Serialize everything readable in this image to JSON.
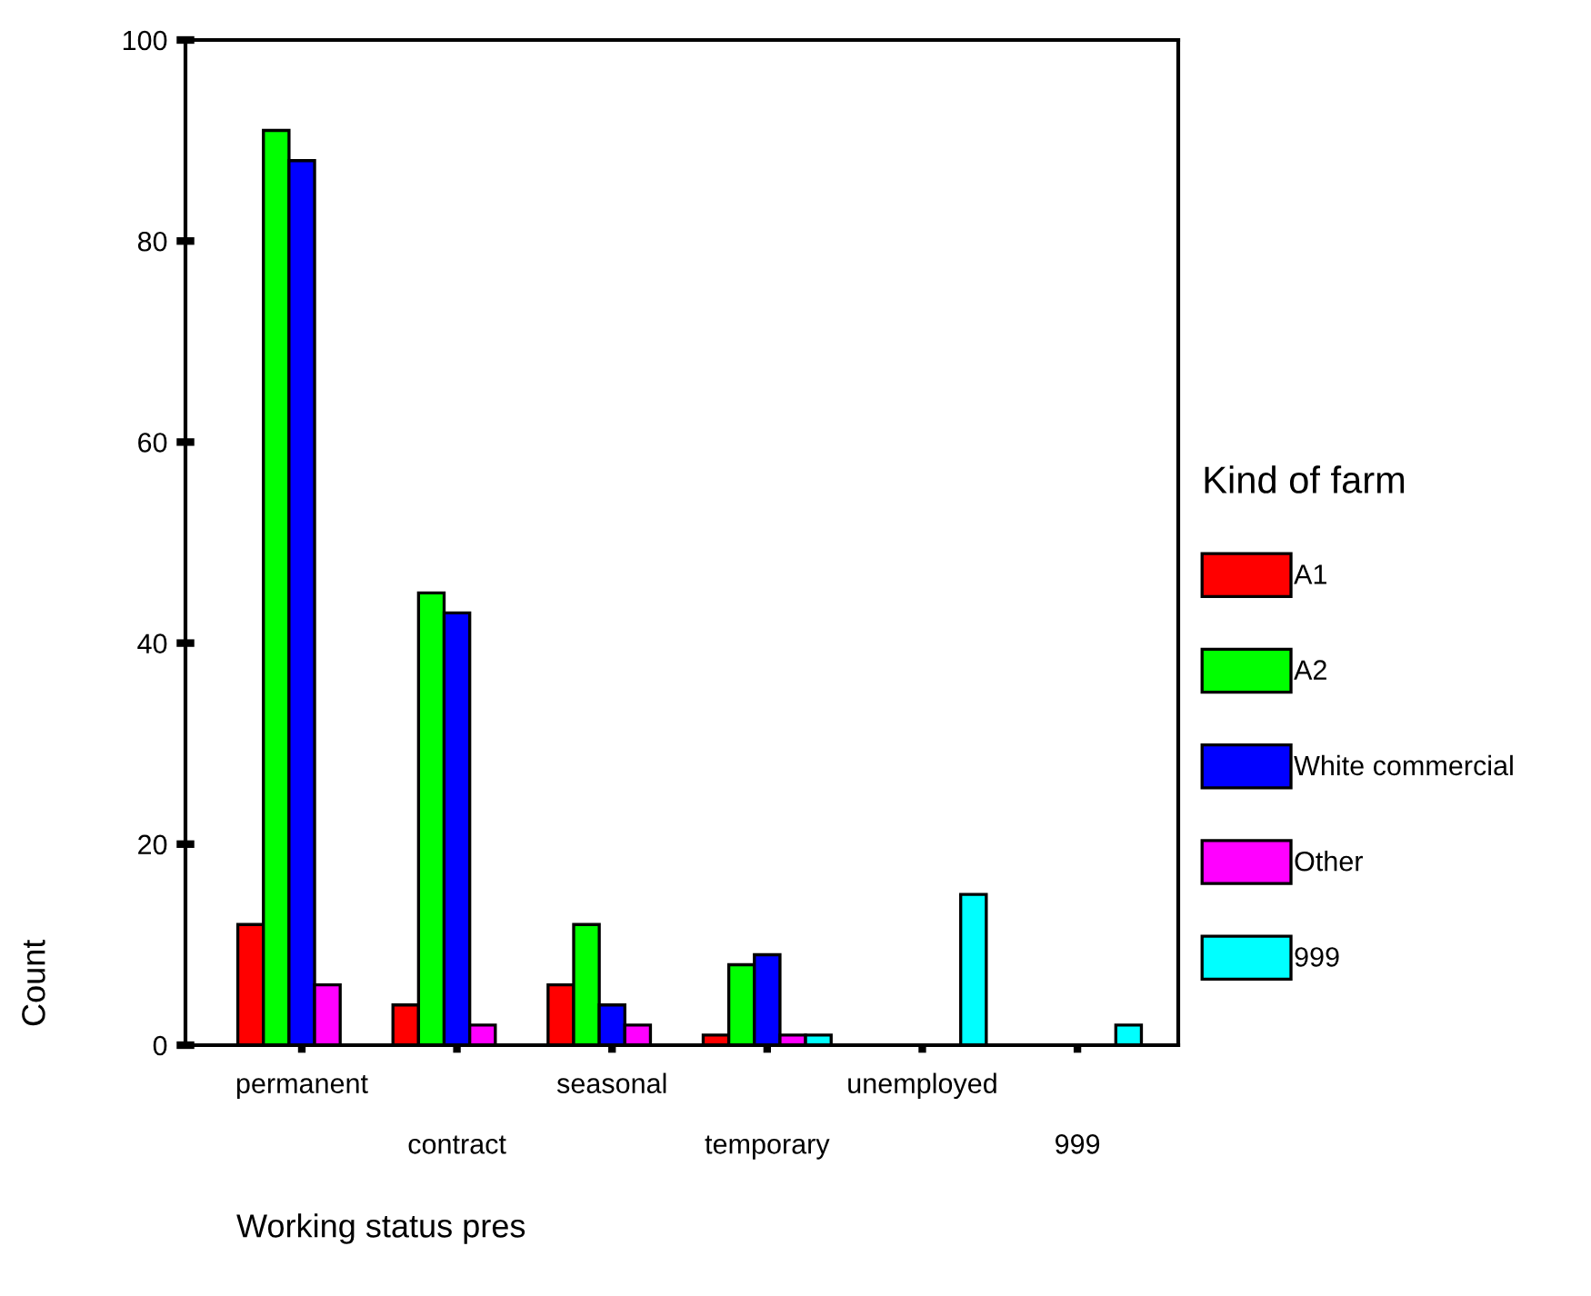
{
  "chart_data": {
    "type": "bar",
    "xlabel": "Working status pres",
    "ylabel": "Count",
    "legend_title": "Kind of farm",
    "categories": [
      "permanent",
      "contract",
      "seasonal",
      "temporary",
      "unemployed",
      "999"
    ],
    "series": [
      {
        "name": "A1",
        "color": "#ff0000",
        "values": [
          12,
          4,
          6,
          1,
          null,
          null
        ]
      },
      {
        "name": "A2",
        "color": "#00ff00",
        "values": [
          91,
          45,
          12,
          8,
          null,
          null
        ]
      },
      {
        "name": "White commercial",
        "color": "#0000ff",
        "values": [
          88,
          43,
          4,
          9,
          null,
          null
        ]
      },
      {
        "name": "Other",
        "color": "#ff00ff",
        "values": [
          6,
          2,
          2,
          1,
          null,
          null
        ]
      },
      {
        "name": "999",
        "color": "#00ffff",
        "values": [
          null,
          null,
          null,
          1,
          15,
          2
        ]
      }
    ],
    "ylim": [
      0,
      100
    ],
    "yticks": [
      0,
      20,
      40,
      60,
      80,
      100
    ],
    "grid": false,
    "legend": "right"
  }
}
